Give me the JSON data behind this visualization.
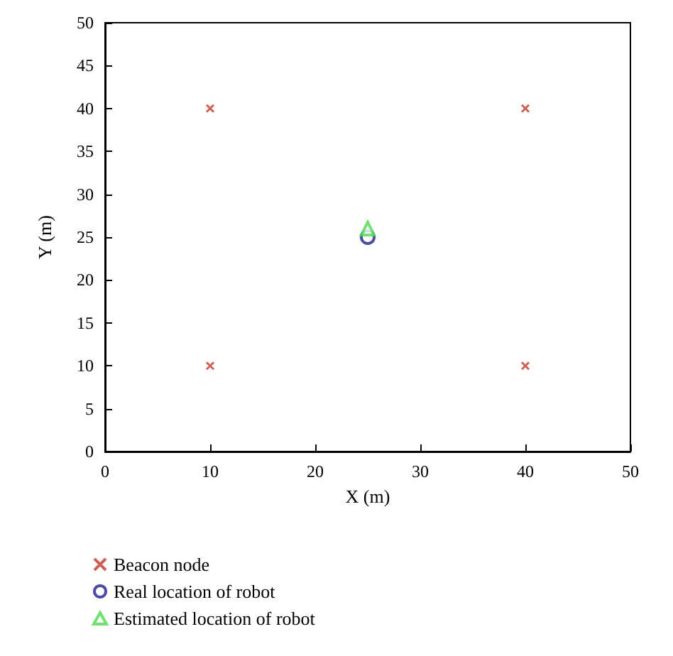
{
  "chart_data": {
    "type": "scatter",
    "xlabel": "X (m)",
    "ylabel": "Y (m)",
    "xlim": [
      0,
      50
    ],
    "xticks": [
      0,
      10,
      20,
      30,
      40,
      50
    ],
    "ylim": [
      0,
      50
    ],
    "yticks": [
      0,
      5,
      10,
      15,
      20,
      25,
      30,
      35,
      40,
      45,
      50
    ],
    "grid": false,
    "legend": "bottom left",
    "series": [
      {
        "name": "Beacon node",
        "color": "#c0392b",
        "marker": "cross",
        "x": [
          10,
          40,
          10,
          40
        ],
        "values": [
          40,
          40,
          10,
          10
        ]
      },
      {
        "name": "Real location of robot",
        "color": "#1f1f8f",
        "marker": "circle",
        "x": [
          25
        ],
        "values": [
          25
        ]
      },
      {
        "name": "Estimated location of robot",
        "color": "#4cd94c",
        "marker": "triangle",
        "x": [
          25
        ],
        "values": [
          26
        ]
      }
    ]
  }
}
